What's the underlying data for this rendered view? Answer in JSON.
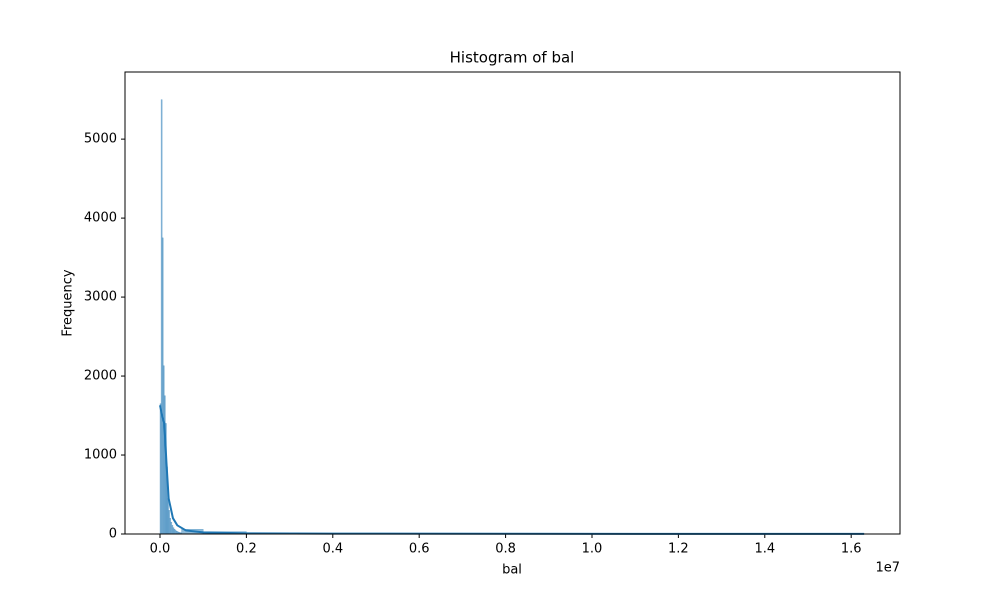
{
  "chart_data": {
    "type": "histogram",
    "title": "Histogram of bal",
    "xlabel": "bal",
    "ylabel": "Frequency",
    "x_offset_label": "1e7",
    "bins": [
      0,
      25000,
      50000,
      75000,
      100000,
      125000,
      150000,
      175000,
      200000,
      225000,
      250000,
      275000,
      300000,
      325000,
      350000,
      375000,
      400000,
      425000,
      450000,
      475000,
      500000,
      1000000,
      2000000,
      4000000,
      8000000,
      16300000
    ],
    "counts": [
      1650,
      5500,
      3750,
      2130,
      1750,
      1400,
      850,
      450,
      300,
      200,
      150,
      110,
      80,
      60,
      45,
      35,
      28,
      22,
      18,
      15,
      60,
      30,
      10,
      5,
      2
    ],
    "color": "#1f77b4",
    "kde": {
      "x": [
        0,
        50000,
        100000,
        150000,
        200000,
        300000,
        400000,
        600000,
        1000000,
        2000000,
        4000000,
        8000000,
        12000000,
        16300000
      ],
      "y": [
        1630,
        1500,
        1400,
        900,
        450,
        200,
        110,
        45,
        20,
        8,
        5,
        3,
        2,
        2
      ]
    },
    "xlim": [
      -810000,
      17130000
    ],
    "xticks": [
      {
        "value": 0,
        "label": "0.0"
      },
      {
        "value": 2000000,
        "label": "0.2"
      },
      {
        "value": 4000000,
        "label": "0.4"
      },
      {
        "value": 6000000,
        "label": "0.6"
      },
      {
        "value": 8000000,
        "label": "0.8"
      },
      {
        "value": 10000000,
        "label": "1.0"
      },
      {
        "value": 12000000,
        "label": "1.2"
      },
      {
        "value": 14000000,
        "label": "1.4"
      },
      {
        "value": 16000000,
        "label": "1.6"
      }
    ],
    "ylim": [
      0,
      5850
    ],
    "yticks": [
      0,
      1000,
      2000,
      3000,
      4000,
      5000
    ]
  }
}
